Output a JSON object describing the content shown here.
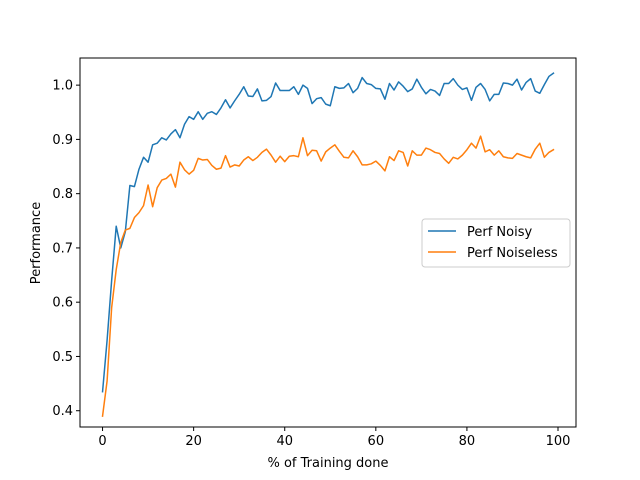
{
  "chart_data": {
    "type": "line",
    "title": "",
    "xlabel": "% of Training done",
    "ylabel": "Performance",
    "xlim": [
      -4.95,
      103.95
    ],
    "ylim": [
      0.37,
      1.05
    ],
    "xticks": [
      0,
      20,
      40,
      60,
      80,
      100
    ],
    "yticks": [
      0.4,
      0.5,
      0.6,
      0.7,
      0.8,
      0.9,
      1.0
    ],
    "xtick_labels": [
      "0",
      "20",
      "40",
      "60",
      "80",
      "100"
    ],
    "ytick_labels": [
      "0.4",
      "0.5",
      "0.6",
      "0.7",
      "0.8",
      "0.9",
      "1.0"
    ],
    "grid": false,
    "legend_position": "center-right",
    "x": [
      0,
      1,
      2,
      3,
      4,
      5,
      6,
      7,
      8,
      9,
      10,
      11,
      12,
      13,
      14,
      15,
      16,
      17,
      18,
      19,
      20,
      21,
      22,
      23,
      24,
      25,
      26,
      27,
      28,
      29,
      30,
      31,
      32,
      33,
      34,
      35,
      36,
      37,
      38,
      39,
      40,
      41,
      42,
      43,
      44,
      45,
      46,
      47,
      48,
      49,
      50,
      51,
      52,
      53,
      54,
      55,
      56,
      57,
      58,
      59,
      60,
      61,
      62,
      63,
      64,
      65,
      66,
      67,
      68,
      69,
      70,
      71,
      72,
      73,
      74,
      75,
      76,
      77,
      78,
      79,
      80,
      81,
      82,
      83,
      84,
      85,
      86,
      87,
      88,
      89,
      90,
      91,
      92,
      93,
      94,
      95,
      96,
      97,
      98,
      99
    ],
    "series": [
      {
        "name": "Perf Noisy",
        "color": "#1f77b4",
        "values": [
          0.435,
          0.53,
          0.64,
          0.74,
          0.7,
          0.73,
          0.815,
          0.813,
          0.845,
          0.867,
          0.858,
          0.89,
          0.893,
          0.903,
          0.899,
          0.91,
          0.918,
          0.903,
          0.928,
          0.942,
          0.937,
          0.951,
          0.937,
          0.948,
          0.951,
          0.946,
          0.958,
          0.973,
          0.958,
          0.971,
          0.983,
          0.997,
          0.98,
          0.979,
          0.993,
          0.971,
          0.972,
          0.979,
          1.004,
          0.99,
          0.99,
          0.99,
          0.997,
          0.983,
          1.0,
          0.994,
          0.966,
          0.975,
          0.977,
          0.965,
          0.962,
          0.997,
          0.994,
          0.995,
          1.003,
          0.986,
          0.994,
          1.014,
          1.003,
          1.001,
          0.994,
          0.993,
          0.974,
          1.003,
          0.991,
          1.006,
          0.998,
          0.988,
          0.993,
          1.011,
          0.996,
          0.984,
          0.992,
          0.989,
          0.981,
          1.003,
          1.003,
          1.012,
          1.0,
          0.992,
          0.995,
          0.972,
          0.996,
          1.003,
          0.992,
          0.971,
          0.983,
          0.983,
          1.004,
          1.003,
          1.0,
          1.011,
          0.991,
          1.005,
          1.012,
          0.989,
          0.985,
          1.001,
          1.016,
          1.022
        ]
      },
      {
        "name": "Perf Noiseless",
        "color": "#ff7f0e",
        "values": [
          0.39,
          0.455,
          0.59,
          0.66,
          0.71,
          0.733,
          0.736,
          0.756,
          0.765,
          0.778,
          0.816,
          0.776,
          0.811,
          0.825,
          0.828,
          0.836,
          0.812,
          0.858,
          0.844,
          0.836,
          0.843,
          0.865,
          0.862,
          0.863,
          0.852,
          0.845,
          0.847,
          0.87,
          0.849,
          0.853,
          0.851,
          0.862,
          0.868,
          0.861,
          0.867,
          0.876,
          0.882,
          0.871,
          0.858,
          0.869,
          0.859,
          0.869,
          0.87,
          0.868,
          0.903,
          0.87,
          0.88,
          0.879,
          0.86,
          0.877,
          0.884,
          0.89,
          0.878,
          0.867,
          0.866,
          0.879,
          0.868,
          0.853,
          0.853,
          0.855,
          0.86,
          0.852,
          0.842,
          0.868,
          0.861,
          0.879,
          0.876,
          0.851,
          0.879,
          0.871,
          0.871,
          0.884,
          0.881,
          0.876,
          0.874,
          0.864,
          0.856,
          0.867,
          0.864,
          0.871,
          0.881,
          0.893,
          0.884,
          0.906,
          0.877,
          0.881,
          0.871,
          0.879,
          0.868,
          0.866,
          0.865,
          0.874,
          0.871,
          0.868,
          0.866,
          0.882,
          0.893,
          0.867,
          0.876,
          0.881
        ]
      }
    ]
  }
}
